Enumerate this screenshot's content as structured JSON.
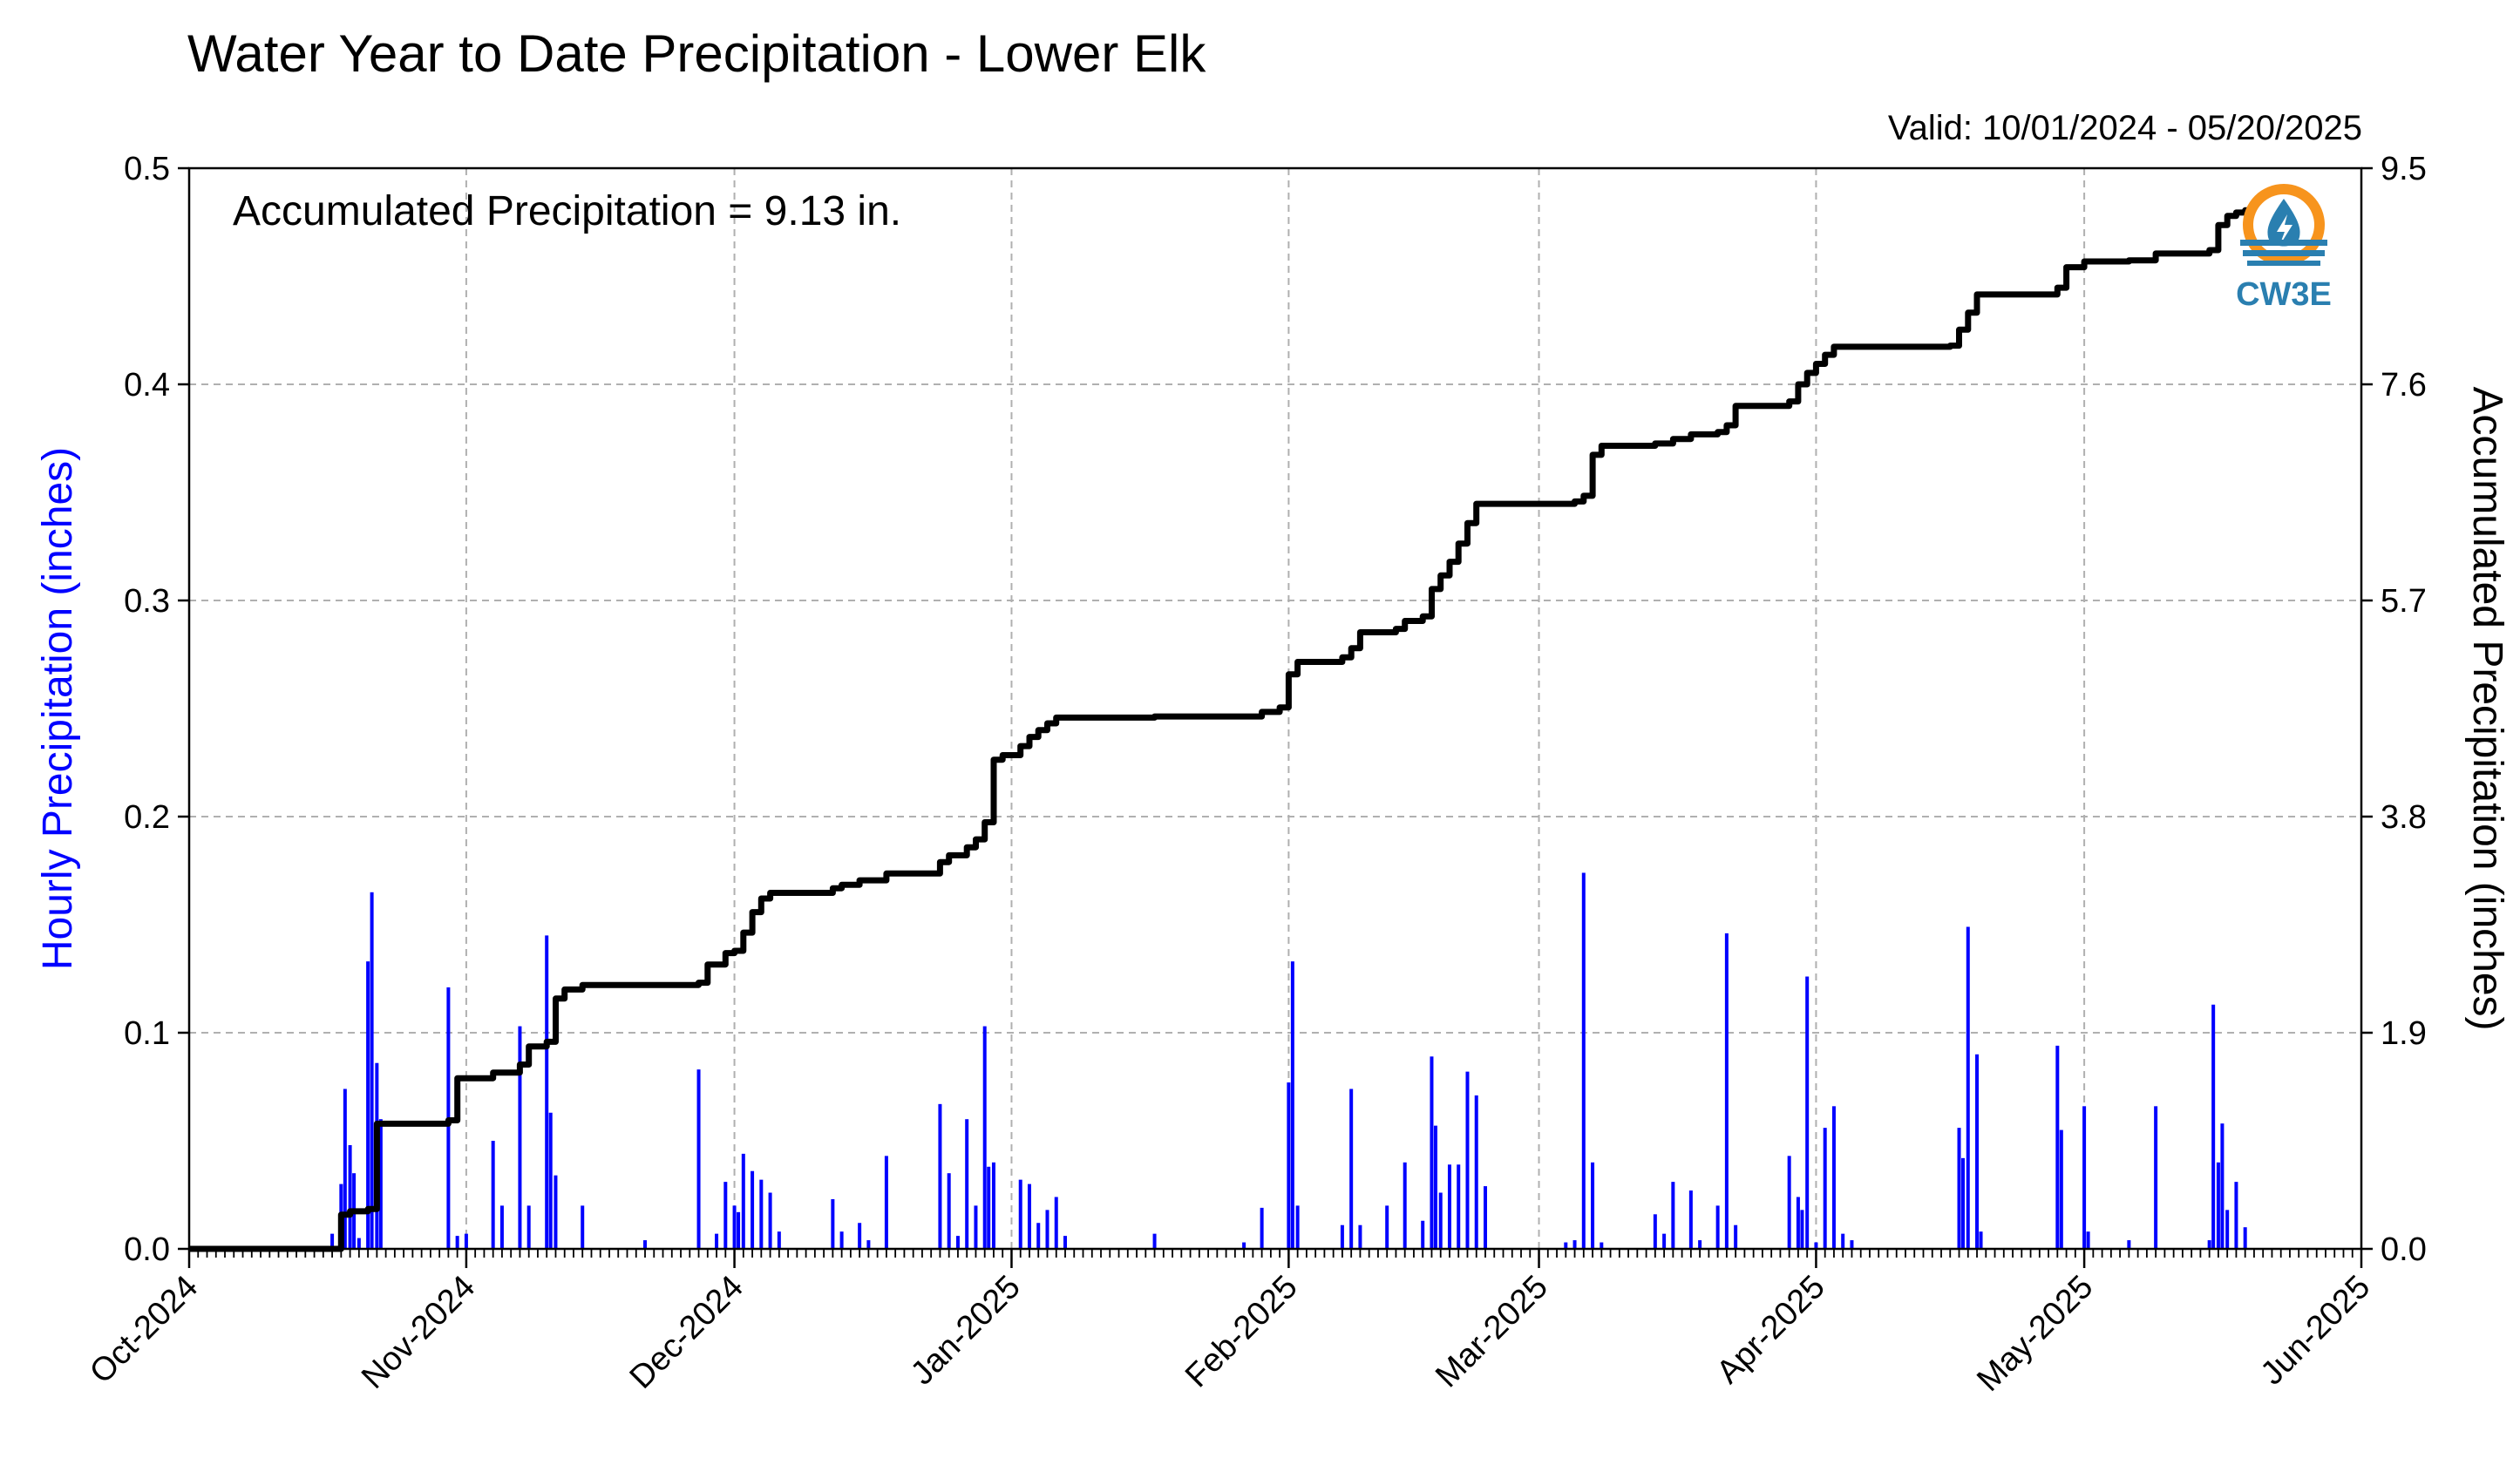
{
  "chart_data": {
    "type": "bar",
    "title": "Water Year to Date Precipitation - Lower Elk",
    "valid_range": "Valid: 10/01/2024 - 05/20/2025",
    "annotation": "Accumulated Precipitation = 9.13 in.",
    "ylabel_left": "Hourly Precipitation (inches)",
    "ylabel_right": "Accumulated Precipitation (inches)",
    "ylim_left": [
      0,
      0.5
    ],
    "ylim_right": [
      0,
      9.5
    ],
    "xlim": [
      "2024-10-01",
      "2025-06-01"
    ],
    "grid": true,
    "colors": {
      "hourly": "#0000ff",
      "accumulated": "#000000",
      "ylabel_left": "#0000ff",
      "logo_orange": "#f7941d",
      "logo_blue": "#2a7fb0"
    },
    "y_ticks_left": [
      "0.0",
      "0.1",
      "0.2",
      "0.3",
      "0.4",
      "0.5"
    ],
    "y_ticks_right": [
      "0.0",
      "1.9",
      "3.8",
      "5.7",
      "7.6",
      "9.5"
    ],
    "x_ticks": [
      {
        "date": "2024-10-01",
        "label": "Oct-2024"
      },
      {
        "date": "2024-11-01",
        "label": "Nov-2024"
      },
      {
        "date": "2024-12-01",
        "label": "Dec-2024"
      },
      {
        "date": "2025-01-01",
        "label": "Jan-2025"
      },
      {
        "date": "2025-02-01",
        "label": "Feb-2025"
      },
      {
        "date": "2025-03-01",
        "label": "Mar-2025"
      },
      {
        "date": "2025-04-01",
        "label": "Apr-2025"
      },
      {
        "date": "2025-05-01",
        "label": "May-2025"
      },
      {
        "date": "2025-06-01",
        "label": "Jun-2025"
      }
    ],
    "series": [
      {
        "name": "Hourly Precipitation",
        "axis": "left",
        "style": "bar",
        "points": [
          [
            "2024-10-17",
            0.007
          ],
          [
            "2024-10-18",
            0.03
          ],
          [
            "2024-10-18",
            0.074
          ],
          [
            "2024-10-19",
            0.048
          ],
          [
            "2024-10-19",
            0.035
          ],
          [
            "2024-10-20",
            0.005
          ],
          [
            "2024-10-21",
            0.133
          ],
          [
            "2024-10-21",
            0.165
          ],
          [
            "2024-10-22",
            0.086
          ],
          [
            "2024-10-22",
            0.06
          ],
          [
            "2024-10-30",
            0.121
          ],
          [
            "2024-10-31",
            0.006
          ],
          [
            "2024-11-01",
            0.007
          ],
          [
            "2024-11-04",
            0.05
          ],
          [
            "2024-11-05",
            0.02
          ],
          [
            "2024-11-07",
            0.103
          ],
          [
            "2024-11-08",
            0.02
          ],
          [
            "2024-11-10",
            0.145
          ],
          [
            "2024-11-10",
            0.063
          ],
          [
            "2024-11-11",
            0.034
          ],
          [
            "2024-11-14",
            0.02
          ],
          [
            "2024-11-21",
            0.004
          ],
          [
            "2024-11-27",
            0.083
          ],
          [
            "2024-11-29",
            0.007
          ],
          [
            "2024-11-30",
            0.031
          ],
          [
            "2024-12-01",
            0.02
          ],
          [
            "2024-12-01",
            0.017
          ],
          [
            "2024-12-02",
            0.044
          ],
          [
            "2024-12-03",
            0.036
          ],
          [
            "2024-12-04",
            0.032
          ],
          [
            "2024-12-05",
            0.026
          ],
          [
            "2024-12-06",
            0.008
          ],
          [
            "2024-12-12",
            0.023
          ],
          [
            "2024-12-13",
            0.008
          ],
          [
            "2024-12-15",
            0.012
          ],
          [
            "2024-12-16",
            0.004
          ],
          [
            "2024-12-18",
            0.043
          ],
          [
            "2024-12-24",
            0.067
          ],
          [
            "2024-12-25",
            0.035
          ],
          [
            "2024-12-26",
            0.006
          ],
          [
            "2024-12-27",
            0.06
          ],
          [
            "2024-12-28",
            0.02
          ],
          [
            "2024-12-29",
            0.103
          ],
          [
            "2024-12-29",
            0.038
          ],
          [
            "2024-12-30",
            0.04
          ],
          [
            "2025-01-02",
            0.032
          ],
          [
            "2025-01-03",
            0.03
          ],
          [
            "2025-01-04",
            0.012
          ],
          [
            "2025-01-05",
            0.018
          ],
          [
            "2025-01-06",
            0.024
          ],
          [
            "2025-01-07",
            0.006
          ],
          [
            "2025-01-17",
            0.007
          ],
          [
            "2025-01-27",
            0.003
          ],
          [
            "2025-01-29",
            0.019
          ],
          [
            "2025-02-01",
            0.077
          ],
          [
            "2025-02-01",
            0.133
          ],
          [
            "2025-02-02",
            0.02
          ],
          [
            "2025-02-07",
            0.011
          ],
          [
            "2025-02-08",
            0.074
          ],
          [
            "2025-02-09",
            0.011
          ],
          [
            "2025-02-12",
            0.02
          ],
          [
            "2025-02-14",
            0.04
          ],
          [
            "2025-02-16",
            0.013
          ],
          [
            "2025-02-17",
            0.089
          ],
          [
            "2025-02-17",
            0.057
          ],
          [
            "2025-02-18",
            0.026
          ],
          [
            "2025-02-19",
            0.039
          ],
          [
            "2025-02-20",
            0.039
          ],
          [
            "2025-02-21",
            0.082
          ],
          [
            "2025-02-22",
            0.071
          ],
          [
            "2025-02-23",
            0.029
          ],
          [
            "2025-03-04",
            0.003
          ],
          [
            "2025-03-05",
            0.004
          ],
          [
            "2025-03-06",
            0.174
          ],
          [
            "2025-03-07",
            0.04
          ],
          [
            "2025-03-08",
            0.003
          ],
          [
            "2025-03-14",
            0.016
          ],
          [
            "2025-03-15",
            0.007
          ],
          [
            "2025-03-16",
            0.031
          ],
          [
            "2025-03-18",
            0.027
          ],
          [
            "2025-03-19",
            0.004
          ],
          [
            "2025-03-21",
            0.02
          ],
          [
            "2025-03-22",
            0.146
          ],
          [
            "2025-03-23",
            0.011
          ],
          [
            "2025-03-29",
            0.043
          ],
          [
            "2025-03-30",
            0.024
          ],
          [
            "2025-03-30",
            0.018
          ],
          [
            "2025-03-31",
            0.126
          ],
          [
            "2025-04-01",
            0.003
          ],
          [
            "2025-04-02",
            0.056
          ],
          [
            "2025-04-03",
            0.066
          ],
          [
            "2025-04-04",
            0.007
          ],
          [
            "2025-04-05",
            0.004
          ],
          [
            "2025-04-17",
            0.056
          ],
          [
            "2025-04-17",
            0.042
          ],
          [
            "2025-04-18",
            0.149
          ],
          [
            "2025-04-19",
            0.09
          ],
          [
            "2025-04-19",
            0.008
          ],
          [
            "2025-04-28",
            0.094
          ],
          [
            "2025-04-28",
            0.055
          ],
          [
            "2025-05-01",
            0.066
          ],
          [
            "2025-05-01",
            0.008
          ],
          [
            "2025-05-06",
            0.004
          ],
          [
            "2025-05-09",
            0.066
          ],
          [
            "2025-05-15",
            0.004
          ],
          [
            "2025-05-15",
            0.113
          ],
          [
            "2025-05-16",
            0.04
          ],
          [
            "2025-05-16",
            0.058
          ],
          [
            "2025-05-17",
            0.018
          ],
          [
            "2025-05-18",
            0.031
          ],
          [
            "2025-05-19",
            0.01
          ]
        ]
      },
      {
        "name": "Accumulated Precipitation",
        "axis": "right",
        "style": "step",
        "points": [
          [
            "2024-10-01",
            0.0
          ],
          [
            "2024-10-17",
            0.0
          ],
          [
            "2024-10-18",
            0.3
          ],
          [
            "2024-10-19",
            0.33
          ],
          [
            "2024-10-21",
            0.35
          ],
          [
            "2024-10-22",
            1.1
          ],
          [
            "2024-10-30",
            1.13
          ],
          [
            "2024-10-31",
            1.5
          ],
          [
            "2024-11-04",
            1.55
          ],
          [
            "2024-11-07",
            1.62
          ],
          [
            "2024-11-08",
            1.78
          ],
          [
            "2024-11-10",
            1.82
          ],
          [
            "2024-11-11",
            2.2
          ],
          [
            "2024-11-12",
            2.28
          ],
          [
            "2024-11-14",
            2.32
          ],
          [
            "2024-11-27",
            2.34
          ],
          [
            "2024-11-28",
            2.5
          ],
          [
            "2024-11-30",
            2.6
          ],
          [
            "2024-12-01",
            2.62
          ],
          [
            "2024-12-02",
            2.78
          ],
          [
            "2024-12-03",
            2.96
          ],
          [
            "2024-12-04",
            3.08
          ],
          [
            "2024-12-05",
            3.13
          ],
          [
            "2024-12-12",
            3.17
          ],
          [
            "2024-12-13",
            3.2
          ],
          [
            "2024-12-15",
            3.24
          ],
          [
            "2024-12-18",
            3.3
          ],
          [
            "2024-12-24",
            3.4
          ],
          [
            "2024-12-25",
            3.46
          ],
          [
            "2024-12-27",
            3.53
          ],
          [
            "2024-12-28",
            3.6
          ],
          [
            "2024-12-29",
            3.75
          ],
          [
            "2024-12-30",
            4.3
          ],
          [
            "2024-12-31",
            4.34
          ],
          [
            "2025-01-02",
            4.42
          ],
          [
            "2025-01-03",
            4.5
          ],
          [
            "2025-01-04",
            4.56
          ],
          [
            "2025-01-05",
            4.62
          ],
          [
            "2025-01-06",
            4.67
          ],
          [
            "2025-01-17",
            4.68
          ],
          [
            "2025-01-29",
            4.72
          ],
          [
            "2025-01-31",
            4.76
          ],
          [
            "2025-02-01",
            5.05
          ],
          [
            "2025-02-02",
            5.16
          ],
          [
            "2025-02-07",
            5.2
          ],
          [
            "2025-02-08",
            5.28
          ],
          [
            "2025-02-09",
            5.42
          ],
          [
            "2025-02-13",
            5.45
          ],
          [
            "2025-02-14",
            5.52
          ],
          [
            "2025-02-16",
            5.56
          ],
          [
            "2025-02-17",
            5.8
          ],
          [
            "2025-02-18",
            5.92
          ],
          [
            "2025-02-19",
            6.04
          ],
          [
            "2025-02-20",
            6.2
          ],
          [
            "2025-02-21",
            6.38
          ],
          [
            "2025-02-22",
            6.55
          ],
          [
            "2025-03-05",
            6.57
          ],
          [
            "2025-03-06",
            6.62
          ],
          [
            "2025-03-07",
            6.98
          ],
          [
            "2025-03-08",
            7.06
          ],
          [
            "2025-03-14",
            7.08
          ],
          [
            "2025-03-16",
            7.12
          ],
          [
            "2025-03-18",
            7.16
          ],
          [
            "2025-03-21",
            7.18
          ],
          [
            "2025-03-22",
            7.24
          ],
          [
            "2025-03-23",
            7.41
          ],
          [
            "2025-03-29",
            7.45
          ],
          [
            "2025-03-30",
            7.6
          ],
          [
            "2025-03-31",
            7.7
          ],
          [
            "2025-04-01",
            7.78
          ],
          [
            "2025-04-02",
            7.86
          ],
          [
            "2025-04-03",
            7.93
          ],
          [
            "2025-04-16",
            7.94
          ],
          [
            "2025-04-17",
            8.08
          ],
          [
            "2025-04-18",
            8.23
          ],
          [
            "2025-04-19",
            8.39
          ],
          [
            "2025-04-28",
            8.45
          ],
          [
            "2025-04-29",
            8.63
          ],
          [
            "2025-05-01",
            8.68
          ],
          [
            "2025-05-06",
            8.69
          ],
          [
            "2025-05-09",
            8.75
          ],
          [
            "2025-05-15",
            8.78
          ],
          [
            "2025-05-16",
            9.0
          ],
          [
            "2025-05-17",
            9.08
          ],
          [
            "2025-05-18",
            9.11
          ],
          [
            "2025-05-19",
            9.13
          ],
          [
            "2025-05-20",
            9.13
          ]
        ]
      }
    ]
  },
  "logo": {
    "text": "CW3E",
    "icon": "water-drop-logo-icon"
  }
}
